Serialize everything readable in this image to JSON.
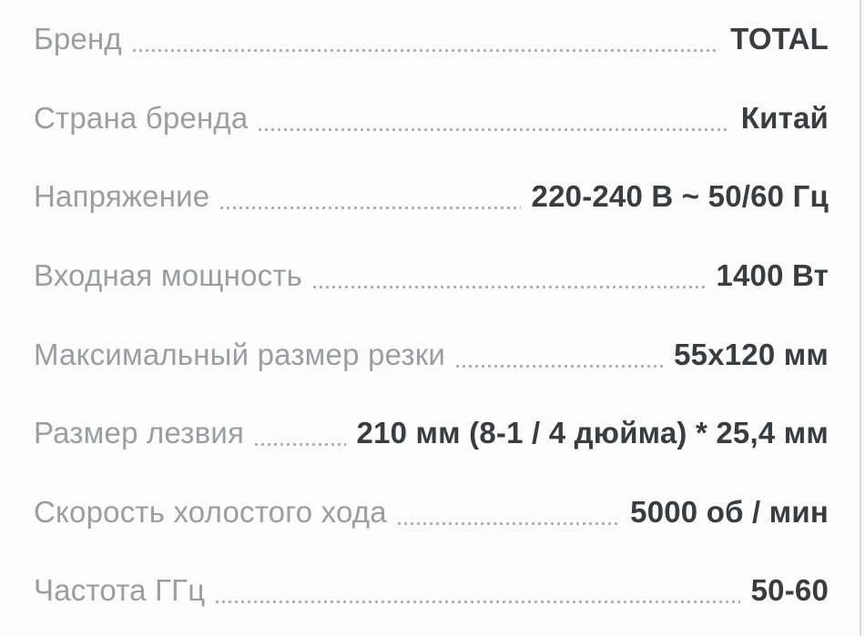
{
  "theme": {
    "bg": "#fcfcfc",
    "label_color": "#9b9ea1",
    "value_color": "#3a3d3f",
    "dot_color": "#aaadaf",
    "divider_color": "#d9d9d9"
  },
  "specs": {
    "rows": [
      {
        "label": "Бренд",
        "value": "TOTAL"
      },
      {
        "label": "Страна бренда",
        "value": "Китай"
      },
      {
        "label": "Напряжение",
        "value": "220-240 В ~ 50/60 Гц"
      },
      {
        "label": "Входная мощность",
        "value": "1400 Вт"
      },
      {
        "label": "Максимальный размер резки",
        "value": "55х120 мм"
      },
      {
        "label": "Размер лезвия",
        "value": "210 мм (8-1 / 4 дюйма) * 25,4 мм"
      },
      {
        "label": "Скорость холостого хода",
        "value": "5000 об / мин"
      },
      {
        "label": "Частота ГГц",
        "value": "50-60"
      }
    ]
  }
}
